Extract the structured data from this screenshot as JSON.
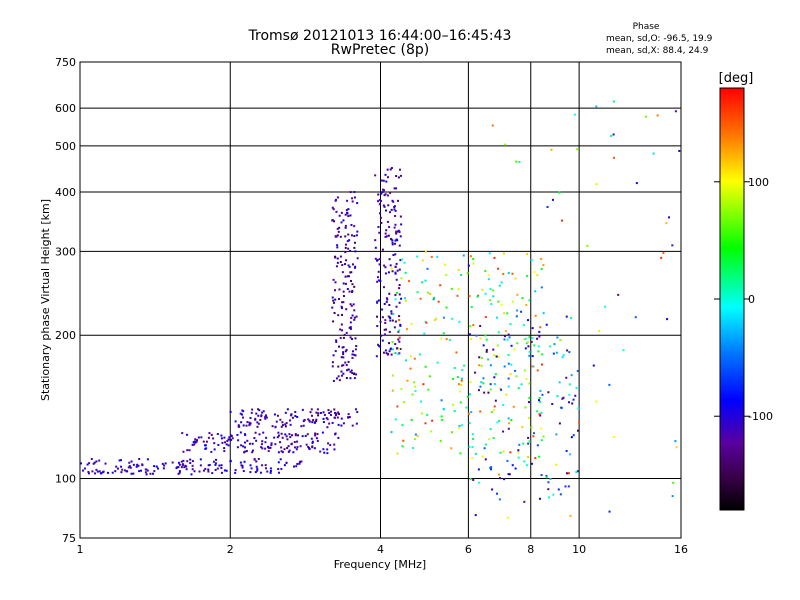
{
  "chart_data": {
    "type": "scatter",
    "title_line1": "Tromsø 20121013 16:44:00–16:45:43",
    "title_line2": "RwPretec (8p)",
    "xlabel": "Frequency [MHz]",
    "ylabel": "Stationary phase Virtual Height [km]",
    "x_scale": "log",
    "y_scale": "log",
    "xlim": [
      1,
      16
    ],
    "ylim": [
      75,
      750
    ],
    "x_ticks": [
      1,
      2,
      4,
      6,
      8,
      10,
      16
    ],
    "x_tick_labels": [
      "1",
      "2",
      "4",
      "6",
      "8",
      "10",
      "16"
    ],
    "y_ticks": [
      75,
      100,
      200,
      300,
      400,
      500,
      600,
      750
    ],
    "y_tick_labels": [
      "75",
      "100",
      "200",
      "300",
      "400",
      "500",
      "600",
      "750"
    ],
    "grid": true,
    "phase_stats": {
      "heading": "Phase",
      "line_o": "mean, sd,O: -96.5, 19.9",
      "line_x": "mean, sd,X:  88.4, 24.9"
    },
    "colorbar": {
      "label": "[deg]",
      "range": [
        -180,
        180
      ],
      "ticks": [
        100,
        0,
        -100
      ],
      "tick_labels": [
        "100",
        "0",
        "-100"
      ]
    },
    "point_groups": [
      {
        "desc": "low trace",
        "x_range": [
          1.0,
          2.8
        ],
        "y_range": [
          102,
          110
        ],
        "phase": -105
      },
      {
        "desc": "second trace",
        "x_range": [
          1.6,
          3.3
        ],
        "y_range": [
          113,
          125
        ],
        "phase": -110
      },
      {
        "desc": "third trace",
        "x_range": [
          2.0,
          3.6
        ],
        "y_range": [
          128,
          140
        ],
        "phase": -115
      },
      {
        "desc": "cusp near 3.5 MHz",
        "x_range": [
          3.2,
          3.6
        ],
        "y_range": [
          160,
          400
        ],
        "phase": -120
      },
      {
        "desc": "cusp near 4.1 MHz",
        "x_range": [
          3.9,
          4.4
        ],
        "y_range": [
          180,
          450
        ],
        "phase": -115
      },
      {
        "desc": "mid band mixed",
        "x_range": [
          4.2,
          8.5
        ],
        "y_range": [
          110,
          300
        ],
        "phase": 60
      },
      {
        "desc": "high band mixed",
        "x_range": [
          6.0,
          10.0
        ],
        "y_range": [
          90,
          220
        ],
        "phase": -60
      },
      {
        "desc": "sparse high",
        "x_range": [
          6.0,
          16.0
        ],
        "y_range": [
          80,
          620
        ],
        "phase": 20
      }
    ]
  }
}
